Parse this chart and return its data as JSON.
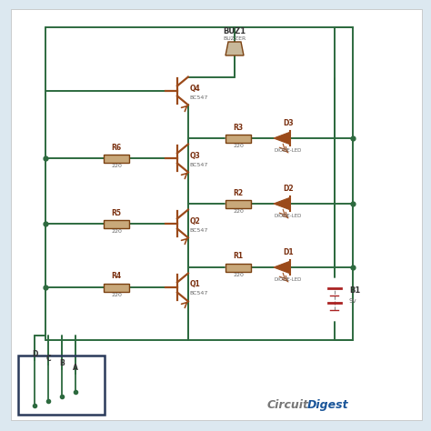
{
  "bg_color": "#dce8f0",
  "panel_color": "#ffffff",
  "wire_color": "#2d6a3f",
  "resistor_fill": "#c8a87a",
  "resistor_edge": "#7a4010",
  "transistor_color": "#9b4a1a",
  "led_color": "#9b4a1a",
  "label_color": "#333333",
  "comp_label_color": "#7a3010",
  "sub_label_color": "#666666",
  "battery_color": "#aa2222",
  "probe_color": "#2a3a5a",
  "buzzer_fill": "#c8b89a",
  "buzzer_edge": "#7a4010",
  "buzzer_label": "BUZ1",
  "buzzer_sub": "BUZZER",
  "battery_label": "B1",
  "battery_sub": "9v",
  "q_labels": [
    "Q4",
    "Q3",
    "Q2",
    "Q1"
  ],
  "q_sub": "BC547",
  "r_base_labels": [
    "R6",
    "R6",
    "R5",
    "R4"
  ],
  "r_coll_labels": [
    "R3",
    "R2",
    "R1"
  ],
  "r_val": "220",
  "d_labels": [
    "D3",
    "D2",
    "D1"
  ],
  "d_sub": "DIODE-LED",
  "probe_labels": [
    "D",
    "C",
    "B",
    "A"
  ],
  "watermark_gray": "Circuit",
  "watermark_blue": "Digest"
}
